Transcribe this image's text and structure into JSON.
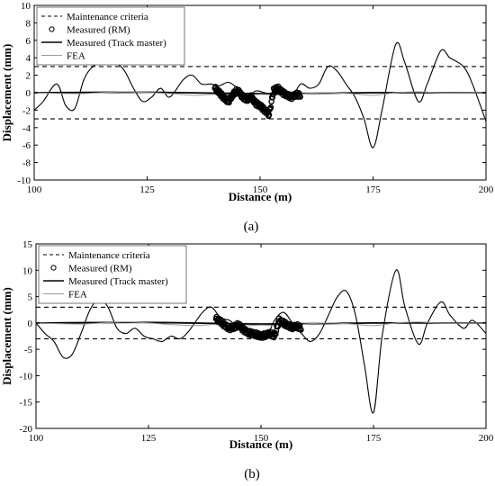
{
  "chart_data": [
    {
      "type": "line",
      "caption": "(a)",
      "xlabel": "Distance (m)",
      "ylabel": "Displacement (mm)",
      "xlim": [
        100,
        200
      ],
      "ylim": [
        -10,
        10
      ],
      "xticks": [
        100,
        125,
        150,
        175,
        200
      ],
      "yticks": [
        -10,
        -8,
        -6,
        -4,
        -2,
        0,
        2,
        4,
        6,
        8,
        10
      ],
      "legend_position": "top-left",
      "legend": [
        "Maintenance criteria",
        "Measured (RM)",
        "Measured (Track master)",
        "FEA"
      ],
      "series": [
        {
          "name": "Maintenance criteria",
          "style": "dashed",
          "color": "#000000",
          "x": [
            100,
            200
          ],
          "y": [
            3,
            3
          ]
        },
        {
          "name": "Maintenance criteria",
          "style": "dashed",
          "color": "#000000",
          "x": [
            100,
            200
          ],
          "y": [
            -3,
            -3
          ]
        },
        {
          "name": "Measured (Track master)",
          "style": "solid",
          "color": "#000000",
          "x": [
            100,
            102,
            105,
            107,
            109,
            111,
            113,
            116,
            118,
            120,
            122,
            124,
            126,
            128,
            130,
            133,
            135,
            137,
            139,
            141,
            143,
            145,
            147,
            149,
            151,
            153,
            155,
            157,
            159,
            161,
            163,
            165,
            167,
            169,
            171,
            173,
            175,
            177,
            180,
            182,
            185,
            187,
            190,
            192,
            195,
            197,
            200
          ],
          "y": [
            -2.0,
            -1.0,
            1.0,
            -1.5,
            -1.8,
            1.5,
            3.0,
            4.0,
            3.5,
            2.5,
            0.5,
            -1.0,
            -0.5,
            0.5,
            -0.5,
            1.5,
            2.0,
            1.0,
            1.0,
            0.8,
            1.2,
            0.5,
            -0.5,
            0.2,
            0.0,
            -0.3,
            0.0,
            -0.5,
            1.0,
            0.5,
            1.0,
            3.0,
            2.5,
            1.0,
            -0.5,
            -3.0,
            -6.3,
            -2.0,
            5.5,
            3.5,
            -1.0,
            1.0,
            4.8,
            4.0,
            3.0,
            1.0,
            -3.3
          ]
        },
        {
          "name": "Measured (Track master)",
          "style": "solid",
          "color": "#000000",
          "x": [
            100,
            125,
            150,
            175,
            200
          ],
          "y": [
            0.0,
            0.05,
            -0.1,
            0.0,
            0.0
          ]
        },
        {
          "name": "FEA",
          "style": "solid",
          "color": "#9a9a9a",
          "x": [
            100,
            110,
            120,
            130,
            135,
            140,
            145,
            150,
            155,
            160,
            165,
            170,
            175,
            180,
            185,
            190,
            200
          ],
          "y": [
            0.0,
            -0.1,
            0.1,
            -0.1,
            -0.3,
            -0.2,
            -0.4,
            -0.2,
            -0.3,
            -0.1,
            0.0,
            -0.1,
            -0.3,
            0.0,
            0.1,
            0.0,
            0.0
          ]
        },
        {
          "name": "Measured (RM)",
          "style": "markers",
          "color": "#000000",
          "x": [
            140,
            141,
            142,
            143,
            144,
            145,
            146,
            147,
            148,
            149,
            150,
            151,
            152,
            153,
            154,
            155,
            156,
            157,
            158,
            159
          ],
          "y": [
            0.5,
            0.0,
            -0.6,
            -1.0,
            -0.2,
            0.3,
            -0.4,
            -0.8,
            -0.5,
            -1.2,
            -1.5,
            -2.0,
            -2.5,
            0.3,
            0.5,
            0.0,
            -0.3,
            -0.5,
            -0.2,
            -0.3
          ]
        }
      ]
    },
    {
      "type": "line",
      "caption": "(b)",
      "xlabel": "Distance (m)",
      "ylabel": "Displacement (mm)",
      "xlim": [
        100,
        200
      ],
      "ylim": [
        -20,
        15
      ],
      "xticks": [
        100,
        125,
        150,
        175,
        200
      ],
      "yticks": [
        -20,
        -15,
        -10,
        -5,
        0,
        5,
        10,
        15
      ],
      "legend_position": "top-left",
      "legend": [
        "Maintenance criteria",
        "Measured (RM)",
        "Measured (Track master)",
        "FEA"
      ],
      "series": [
        {
          "name": "Maintenance criteria",
          "style": "dashed",
          "color": "#000000",
          "x": [
            100,
            200
          ],
          "y": [
            3,
            3
          ]
        },
        {
          "name": "Maintenance criteria",
          "style": "dashed",
          "color": "#000000",
          "x": [
            100,
            200
          ],
          "y": [
            -3,
            -3
          ]
        },
        {
          "name": "Measured (Track master)",
          "style": "solid",
          "color": "#000000",
          "x": [
            100,
            102,
            104,
            106,
            108,
            110,
            112,
            114,
            116,
            118,
            120,
            122,
            124,
            126,
            128,
            130,
            132,
            134,
            137,
            139,
            141,
            143,
            145,
            147,
            149,
            151,
            153,
            155,
            157,
            159,
            161,
            163,
            165,
            167,
            169,
            171,
            173,
            175,
            177,
            180,
            182,
            185,
            187,
            190,
            192,
            195,
            197,
            200
          ],
          "y": [
            0.0,
            -2.0,
            -3.5,
            -6.5,
            -6.0,
            -2.0,
            2.5,
            4.5,
            3.0,
            -1.0,
            -2.0,
            -1.0,
            -2.5,
            -3.0,
            -3.5,
            -2.5,
            -3.0,
            -1.5,
            2.0,
            3.0,
            1.0,
            0.5,
            -1.0,
            -2.0,
            -2.5,
            -3.0,
            0.5,
            2.0,
            0.0,
            -2.0,
            -3.5,
            -2.0,
            1.5,
            5.0,
            6.0,
            1.5,
            -8.0,
            -17.0,
            -2.0,
            10.0,
            3.0,
            -4.0,
            0.0,
            4.0,
            1.5,
            -1.0,
            0.5,
            -2.0
          ]
        },
        {
          "name": "Measured (Track master)",
          "style": "solid",
          "color": "#000000",
          "x": [
            100,
            125,
            150,
            175,
            200
          ],
          "y": [
            0.0,
            0.1,
            -0.2,
            0.0,
            0.0
          ]
        },
        {
          "name": "FEA",
          "style": "solid",
          "color": "#9a9a9a",
          "x": [
            100,
            110,
            120,
            130,
            135,
            140,
            145,
            150,
            155,
            160,
            165,
            170,
            175,
            180,
            185,
            190,
            200
          ],
          "y": [
            0.0,
            -0.2,
            0.2,
            -0.3,
            -0.5,
            -0.3,
            -0.6,
            -0.4,
            -0.5,
            -0.2,
            0.0,
            -0.2,
            -0.5,
            0.0,
            0.2,
            0.0,
            0.0
          ]
        },
        {
          "name": "Measured (RM)",
          "style": "markers",
          "color": "#000000",
          "x": [
            140,
            141,
            142,
            143,
            144,
            145,
            146,
            147,
            148,
            149,
            150,
            151,
            152,
            153,
            154,
            155,
            156,
            157,
            158,
            159
          ],
          "y": [
            0.8,
            0.3,
            -0.5,
            -1.0,
            -0.8,
            -0.3,
            -1.2,
            -1.8,
            -2.0,
            -2.2,
            -2.5,
            -2.3,
            -2.0,
            -2.5,
            0.5,
            0.0,
            -0.5,
            -0.8,
            -0.6,
            -1.0
          ]
        }
      ]
    }
  ]
}
